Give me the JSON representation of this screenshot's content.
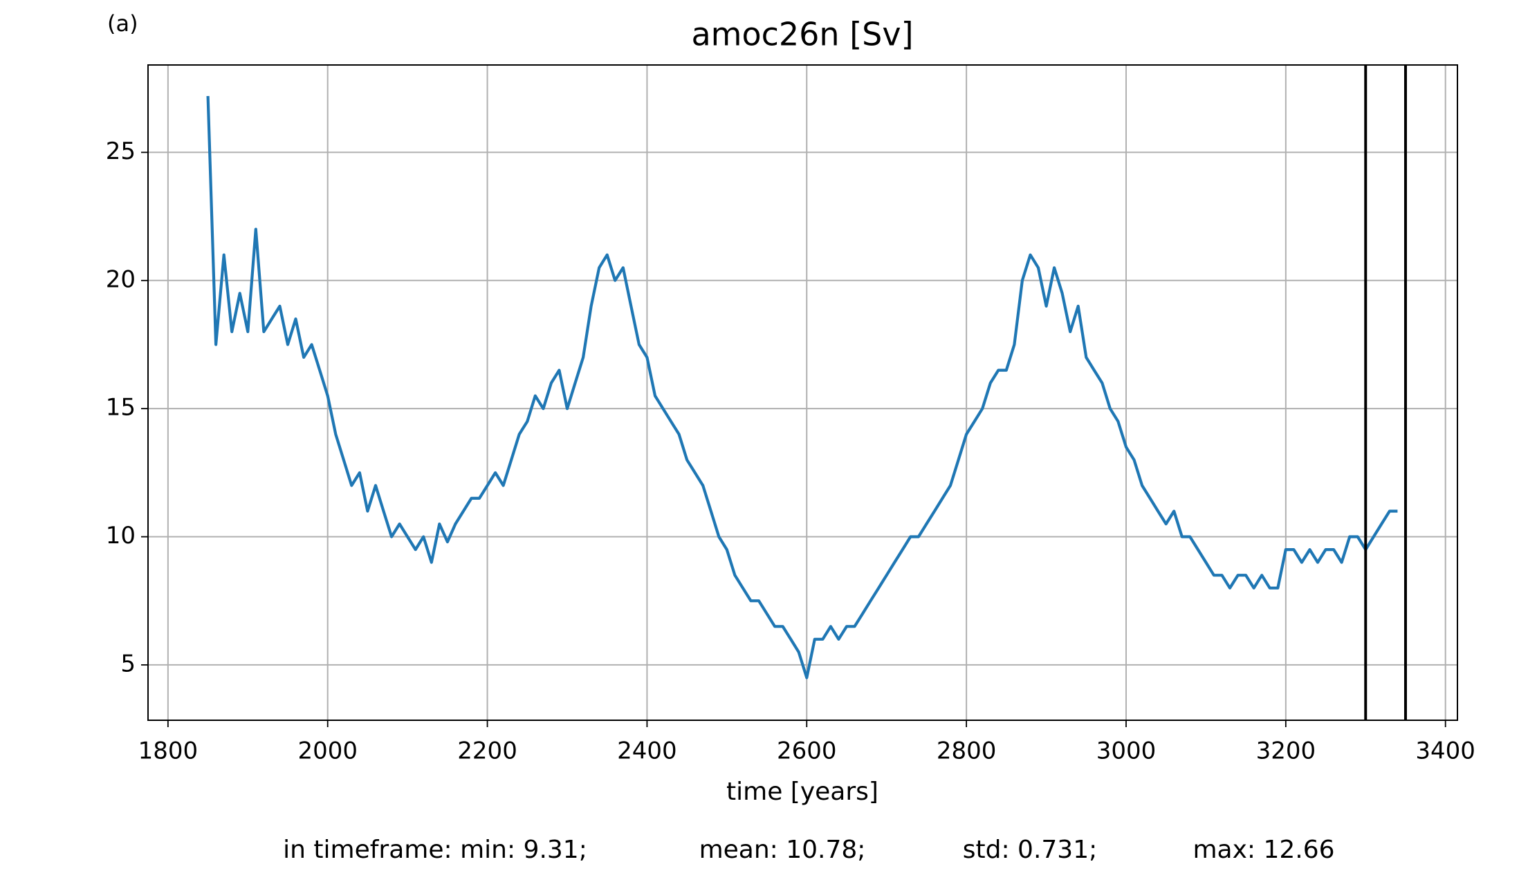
{
  "chart_data": {
    "type": "line",
    "panel_label": "(a)",
    "title": "amoc26n [Sv]",
    "x_label": "time [years]",
    "stats": [
      "in timeframe: min: 9.31;",
      "mean: 10.78;",
      "std: 0.731;",
      "max: 12.66"
    ],
    "x": [
      1850,
      1860,
      1870,
      1880,
      1890,
      1900,
      1910,
      1920,
      1930,
      1940,
      1950,
      1960,
      1970,
      1980,
      1990,
      2000,
      2010,
      2020,
      2030,
      2040,
      2050,
      2060,
      2070,
      2080,
      2090,
      2100,
      2110,
      2120,
      2130,
      2140,
      2150,
      2160,
      2170,
      2180,
      2190,
      2200,
      2210,
      2220,
      2230,
      2240,
      2250,
      2260,
      2270,
      2280,
      2290,
      2300,
      2310,
      2320,
      2330,
      2340,
      2350,
      2360,
      2370,
      2380,
      2390,
      2400,
      2410,
      2420,
      2430,
      2440,
      2450,
      2460,
      2470,
      2480,
      2490,
      2500,
      2510,
      2520,
      2530,
      2540,
      2550,
      2560,
      2570,
      2580,
      2590,
      2600,
      2610,
      2620,
      2630,
      2640,
      2650,
      2660,
      2670,
      2680,
      2690,
      2700,
      2710,
      2720,
      2730,
      2740,
      2750,
      2760,
      2770,
      2780,
      2790,
      2800,
      2810,
      2820,
      2830,
      2840,
      2850,
      2860,
      2870,
      2880,
      2890,
      2900,
      2910,
      2920,
      2930,
      2940,
      2950,
      2960,
      2970,
      2980,
      2990,
      3000,
      3010,
      3020,
      3030,
      3040,
      3050,
      3060,
      3070,
      3080,
      3090,
      3100,
      3110,
      3120,
      3130,
      3140,
      3150,
      3160,
      3170,
      3180,
      3190,
      3200,
      3210,
      3220,
      3230,
      3240,
      3250,
      3260,
      3270,
      3280,
      3290,
      3300,
      3310,
      3320,
      3330,
      3340
    ],
    "series": [
      {
        "color": "#1f77b4",
        "values": [
          27.2,
          17.5,
          21,
          18,
          19.5,
          18,
          22,
          18,
          18.5,
          19,
          17.5,
          18.5,
          17,
          17.5,
          16.5,
          15.5,
          14,
          13,
          12,
          12.5,
          11,
          12,
          11,
          10,
          10.5,
          10,
          9.5,
          10,
          9,
          10.5,
          9.8,
          10.5,
          11,
          11.5,
          11.5,
          12,
          12.5,
          12,
          13,
          14,
          14.5,
          15.5,
          15,
          16,
          16.5,
          15,
          16,
          17,
          19,
          20.5,
          21,
          20,
          20.5,
          19,
          17.5,
          17,
          15.5,
          15,
          14.5,
          14,
          13,
          12.5,
          12,
          11,
          10,
          9.5,
          8.5,
          8,
          7.5,
          7.5,
          7,
          6.5,
          6.5,
          6,
          5.5,
          4.5,
          6,
          6,
          6.5,
          6,
          6.5,
          6.5,
          7,
          7.5,
          8,
          8.5,
          9,
          9.5,
          10,
          10,
          10.5,
          11,
          11.5,
          12,
          13,
          14,
          14.5,
          15,
          16,
          16.5,
          16.5,
          17.5,
          20,
          21,
          20.5,
          19,
          20.5,
          19.5,
          18,
          19,
          17,
          16.5,
          16,
          15,
          14.5,
          13.5,
          13,
          12,
          11.5,
          11,
          10.5,
          11,
          10,
          10,
          9.5,
          9,
          8.5,
          8.5,
          8,
          8.5,
          8.5,
          8,
          8.5,
          8,
          8,
          9.5,
          9.5,
          9,
          9.5,
          9,
          9.5,
          9.5,
          9,
          10,
          10,
          9.5,
          10,
          10.5,
          11,
          11
        ]
      }
    ],
    "vlines": [
      3300,
      3350
    ],
    "vline_color": "#000000",
    "xlim": [
      1775,
      3415
    ],
    "ylim": [
      2.84,
      28.41
    ],
    "xticks": [
      1800,
      2000,
      2200,
      2400,
      2600,
      2800,
      3000,
      3200,
      3400
    ],
    "yticks": [
      5,
      10,
      15,
      20,
      25
    ],
    "grid": true
  }
}
